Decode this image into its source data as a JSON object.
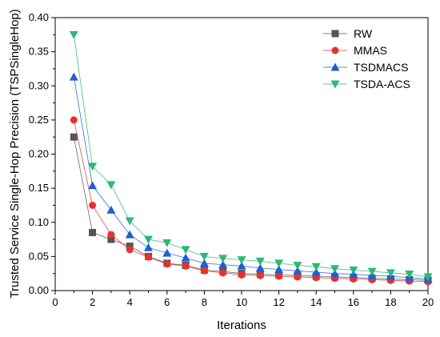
{
  "chart_data": {
    "type": "line",
    "title": "",
    "xlabel": "Iterations",
    "ylabel": "Trusted Service Single-Hop Precision (TSPSingleHop)",
    "xlim": [
      0,
      20
    ],
    "ylim": [
      0.0,
      0.4
    ],
    "xticks": [
      0,
      2,
      4,
      6,
      8,
      10,
      12,
      14,
      16,
      18,
      20
    ],
    "yticks": [
      0.0,
      0.05,
      0.1,
      0.15,
      0.2,
      0.25,
      0.3,
      0.35,
      0.4
    ],
    "xtick_labels": [
      "0",
      "2",
      "4",
      "6",
      "8",
      "10",
      "12",
      "14",
      "16",
      "18",
      "20"
    ],
    "ytick_labels": [
      "0.00",
      "0.05",
      "0.10",
      "0.15",
      "0.20",
      "0.25",
      "0.30",
      "0.35",
      "0.40"
    ],
    "grid": false,
    "legend_position": "top-right",
    "x": [
      1,
      2,
      3,
      4,
      5,
      6,
      7,
      8,
      9,
      10,
      11,
      12,
      13,
      14,
      15,
      16,
      17,
      18,
      19,
      20
    ],
    "series": [
      {
        "name": "RW",
        "color": "#555555",
        "marker": "square",
        "values": [
          0.225,
          0.085,
          0.075,
          0.065,
          0.05,
          0.04,
          0.037,
          0.03,
          0.028,
          0.025,
          0.024,
          0.023,
          0.022,
          0.021,
          0.02,
          0.019,
          0.018,
          0.017,
          0.016,
          0.015
        ]
      },
      {
        "name": "MMAS",
        "color": "#e8312f",
        "marker": "circle",
        "values": [
          0.25,
          0.125,
          0.082,
          0.06,
          0.049,
          0.039,
          0.036,
          0.029,
          0.026,
          0.023,
          0.022,
          0.021,
          0.02,
          0.019,
          0.018,
          0.017,
          0.016,
          0.015,
          0.014,
          0.013
        ]
      },
      {
        "name": "TSDMACS",
        "color": "#1f5fd6",
        "marker": "triangle-up",
        "values": [
          0.313,
          0.154,
          0.118,
          0.082,
          0.063,
          0.055,
          0.048,
          0.04,
          0.038,
          0.036,
          0.033,
          0.031,
          0.029,
          0.027,
          0.025,
          0.024,
          0.022,
          0.021,
          0.019,
          0.017
        ]
      },
      {
        "name": "TSDA-ACS",
        "color": "#2eb872",
        "marker": "triangle-down",
        "values": [
          0.375,
          0.182,
          0.155,
          0.102,
          0.075,
          0.07,
          0.06,
          0.05,
          0.047,
          0.045,
          0.043,
          0.04,
          0.037,
          0.035,
          0.032,
          0.03,
          0.028,
          0.026,
          0.024,
          0.02
        ]
      }
    ]
  }
}
